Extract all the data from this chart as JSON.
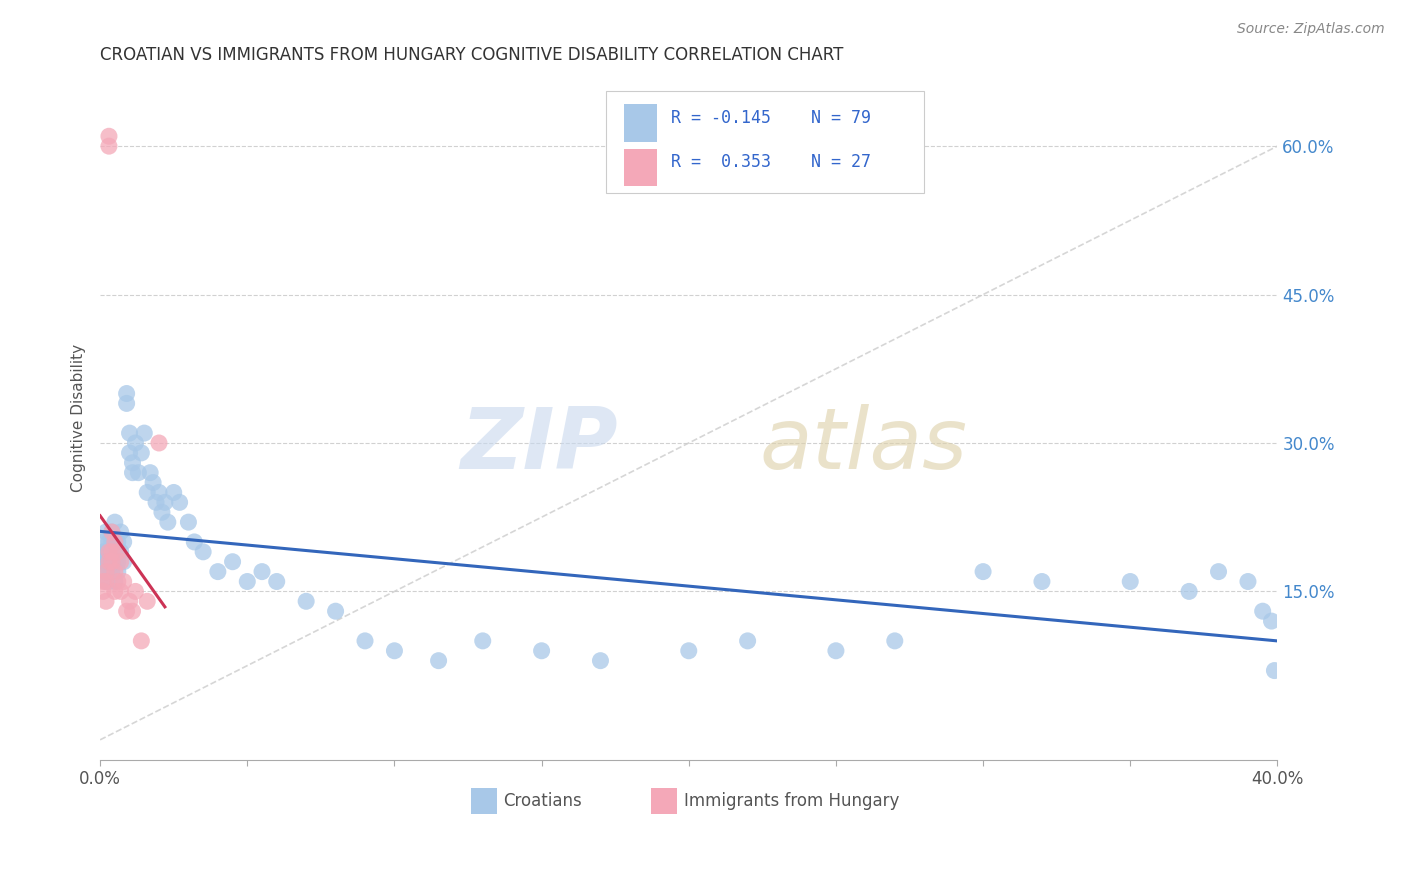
{
  "title": "CROATIAN VS IMMIGRANTS FROM HUNGARY COGNITIVE DISABILITY CORRELATION CHART",
  "source": "Source: ZipAtlas.com",
  "ylabel": "Cognitive Disability",
  "xlim": [
    0.0,
    0.4
  ],
  "ylim": [
    -0.02,
    0.67
  ],
  "croatians_color": "#a8c8e8",
  "immigrants_color": "#f4a8b8",
  "legend_R_color": "#3366cc",
  "legend_label_color": "#555555",
  "watermark_zip_color": "#c8d8ee",
  "watermark_atlas_color": "#ddd0a8",
  "grid_color": "#cccccc",
  "regression_blue": "#3366bb",
  "regression_pink": "#cc3355",
  "spine_color": "#aaaaaa",
  "right_tick_color": "#4488cc",
  "croatians_x": [
    0.001,
    0.001,
    0.001,
    0.002,
    0.002,
    0.002,
    0.002,
    0.002,
    0.003,
    0.003,
    0.003,
    0.003,
    0.003,
    0.004,
    0.004,
    0.004,
    0.004,
    0.005,
    0.005,
    0.005,
    0.005,
    0.005,
    0.006,
    0.006,
    0.006,
    0.006,
    0.007,
    0.007,
    0.008,
    0.008,
    0.009,
    0.009,
    0.01,
    0.01,
    0.011,
    0.011,
    0.012,
    0.013,
    0.014,
    0.015,
    0.016,
    0.017,
    0.018,
    0.019,
    0.02,
    0.021,
    0.022,
    0.023,
    0.025,
    0.027,
    0.03,
    0.032,
    0.035,
    0.04,
    0.045,
    0.05,
    0.055,
    0.06,
    0.07,
    0.08,
    0.09,
    0.1,
    0.115,
    0.13,
    0.15,
    0.17,
    0.2,
    0.22,
    0.25,
    0.27,
    0.3,
    0.32,
    0.35,
    0.37,
    0.38,
    0.39,
    0.395,
    0.398,
    0.399
  ],
  "croatians_y": [
    0.2,
    0.19,
    0.18,
    0.21,
    0.19,
    0.18,
    0.17,
    0.16,
    0.2,
    0.19,
    0.18,
    0.17,
    0.16,
    0.21,
    0.2,
    0.18,
    0.17,
    0.22,
    0.2,
    0.19,
    0.18,
    0.16,
    0.2,
    0.19,
    0.18,
    0.17,
    0.21,
    0.19,
    0.2,
    0.18,
    0.35,
    0.34,
    0.31,
    0.29,
    0.28,
    0.27,
    0.3,
    0.27,
    0.29,
    0.31,
    0.25,
    0.27,
    0.26,
    0.24,
    0.25,
    0.23,
    0.24,
    0.22,
    0.25,
    0.24,
    0.22,
    0.2,
    0.19,
    0.17,
    0.18,
    0.16,
    0.17,
    0.16,
    0.14,
    0.13,
    0.1,
    0.09,
    0.08,
    0.1,
    0.09,
    0.08,
    0.09,
    0.1,
    0.09,
    0.1,
    0.17,
    0.16,
    0.16,
    0.15,
    0.17,
    0.16,
    0.13,
    0.12,
    0.07
  ],
  "immigrants_x": [
    0.001,
    0.001,
    0.002,
    0.002,
    0.002,
    0.003,
    0.003,
    0.003,
    0.003,
    0.004,
    0.004,
    0.004,
    0.005,
    0.005,
    0.005,
    0.006,
    0.006,
    0.007,
    0.007,
    0.008,
    0.009,
    0.01,
    0.011,
    0.012,
    0.014,
    0.016,
    0.02
  ],
  "immigrants_y": [
    0.16,
    0.15,
    0.17,
    0.16,
    0.14,
    0.61,
    0.6,
    0.19,
    0.18,
    0.21,
    0.19,
    0.18,
    0.2,
    0.17,
    0.15,
    0.19,
    0.16,
    0.18,
    0.15,
    0.16,
    0.13,
    0.14,
    0.13,
    0.15,
    0.1,
    0.14,
    0.3
  ]
}
